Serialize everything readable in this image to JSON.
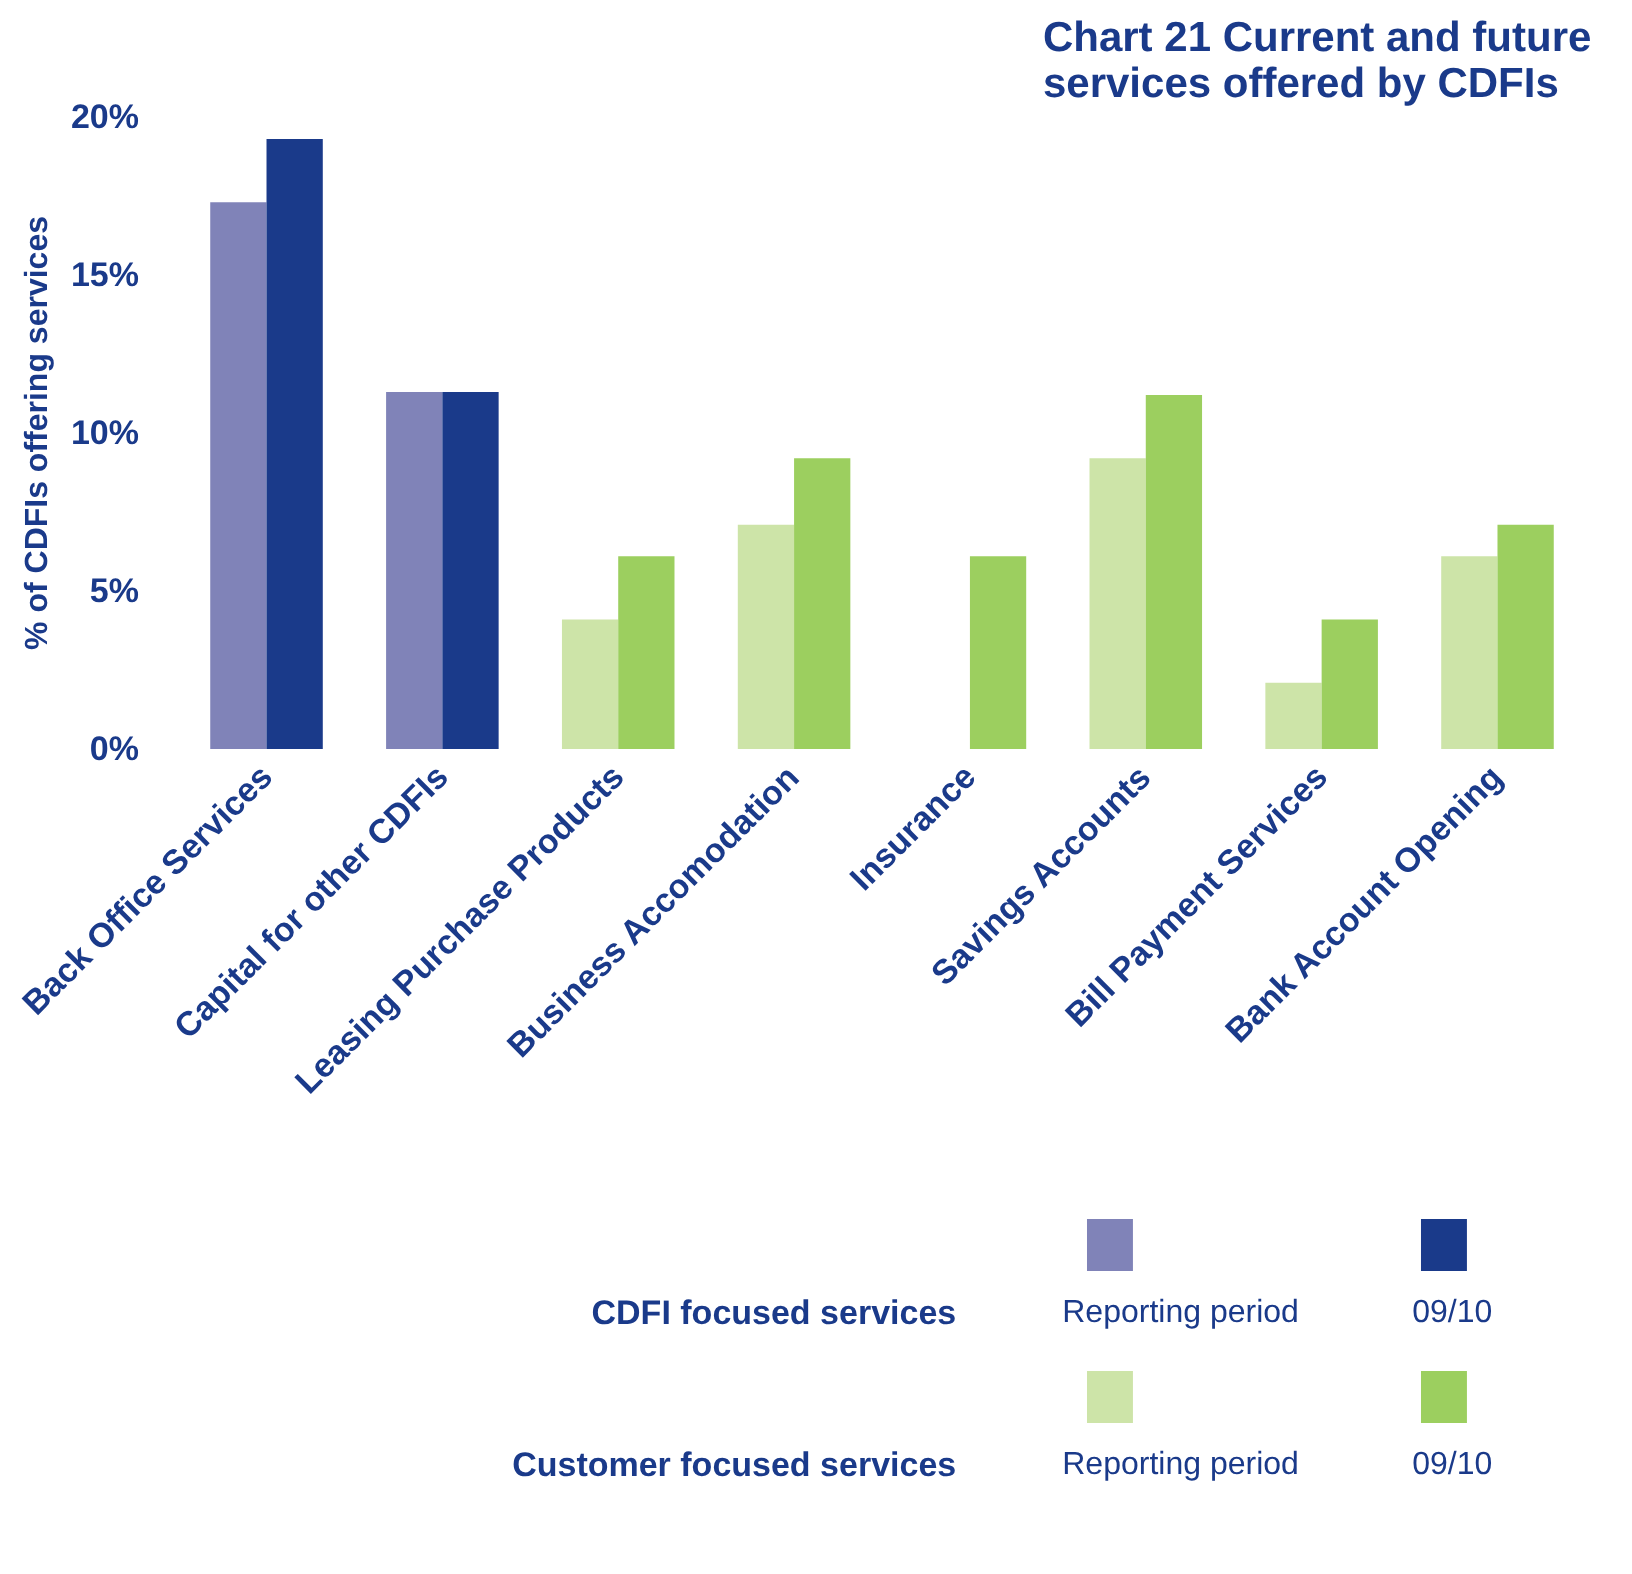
{
  "chart_data": {
    "type": "bar",
    "title": "Chart 21  Current and future services offered by CDFIs",
    "ylabel": "% of CDFIs offering services",
    "categories": [
      "Back Office Services",
      "Capital for other CDFIs",
      "Leasing Purchase Products",
      "Business Accomodation",
      "Insurance",
      "Savings Accounts",
      "Bill Payment Services",
      "Bank Account Opening"
    ],
    "series": [
      {
        "name": "Reporting period",
        "colors": [
          "#8083b8",
          "#8083b8",
          "#cde4a8",
          "#cde4a8",
          "#cde4a8",
          "#cde4a8",
          "#cde4a8",
          "#cde4a8"
        ],
        "values": [
          17.3,
          11.3,
          4.1,
          7.1,
          0,
          9.2,
          2.1,
          6.1
        ]
      },
      {
        "name": "09/10",
        "colors": [
          "#1a3a8a",
          "#1a3a8a",
          "#9ccf5f",
          "#9ccf5f",
          "#9ccf5f",
          "#9ccf5f",
          "#9ccf5f",
          "#9ccf5f"
        ],
        "values": [
          19.3,
          11.3,
          6.1,
          9.2,
          6.1,
          11.2,
          4.1,
          7.1
        ]
      }
    ],
    "ylim": [
      0,
      20
    ],
    "yticks": [
      {
        "value": 0,
        "label": "0%"
      },
      {
        "value": 5,
        "label": "5%"
      },
      {
        "value": 10,
        "label": "10%"
      },
      {
        "value": 15,
        "label": "15%"
      },
      {
        "value": 20,
        "label": "20%"
      }
    ],
    "grid": false,
    "legend": "bottom",
    "annotations": [
      "CDFI focused services",
      "Customer focused services"
    ]
  }
}
